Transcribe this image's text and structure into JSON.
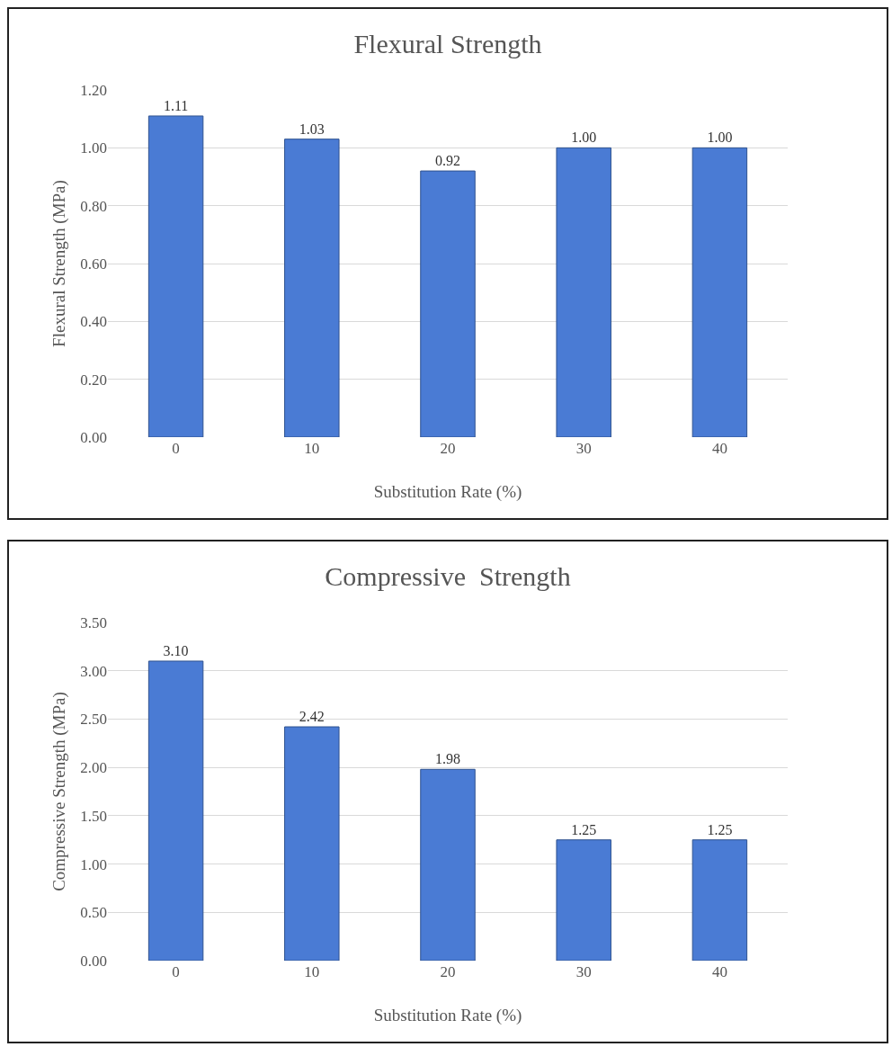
{
  "chart_data": [
    {
      "type": "bar",
      "title": "Flexural Strength",
      "xlabel": "Substitution Rate (%)",
      "ylabel": "Flexural Strength (MPa)",
      "categories": [
        "0",
        "10",
        "20",
        "30",
        "40"
      ],
      "values": [
        1.11,
        1.03,
        0.92,
        1.0,
        1.0
      ],
      "value_labels": [
        "1.11",
        "1.03",
        "0.92",
        "1.00",
        "1.00"
      ],
      "color": "#4a7bd4",
      "ylim": [
        0,
        1.2
      ],
      "yticks": [
        {
          "value": 0,
          "label": "0.00"
        },
        {
          "value": 0.2,
          "label": "0.20"
        },
        {
          "value": 0.4,
          "label": "0.40"
        },
        {
          "value": 0.6,
          "label": "0.60"
        },
        {
          "value": 0.8,
          "label": "0.80"
        },
        {
          "value": 1.0,
          "label": "1.00"
        },
        {
          "value": 1.2,
          "label": "1.20"
        }
      ],
      "grid": "y"
    },
    {
      "type": "bar",
      "title": "Compressive  Strength",
      "xlabel": "Substitution Rate (%)",
      "ylabel": "Compressive Strength (MPa)",
      "categories": [
        "0",
        "10",
        "20",
        "30",
        "40"
      ],
      "values": [
        3.1,
        2.42,
        1.98,
        1.25,
        1.25
      ],
      "value_labels": [
        "3.10",
        "2.42",
        "1.98",
        "1.25",
        "1.25"
      ],
      "color": "#4a7bd4",
      "ylim": [
        0,
        3.5
      ],
      "yticks": [
        {
          "value": 0,
          "label": "0.00"
        },
        {
          "value": 0.5,
          "label": "0.50"
        },
        {
          "value": 1.0,
          "label": "1.00"
        },
        {
          "value": 1.5,
          "label": "1.50"
        },
        {
          "value": 2.0,
          "label": "2.00"
        },
        {
          "value": 2.5,
          "label": "2.50"
        },
        {
          "value": 3.0,
          "label": "3.00"
        },
        {
          "value": 3.5,
          "label": "3.50"
        }
      ],
      "grid": "y"
    }
  ]
}
